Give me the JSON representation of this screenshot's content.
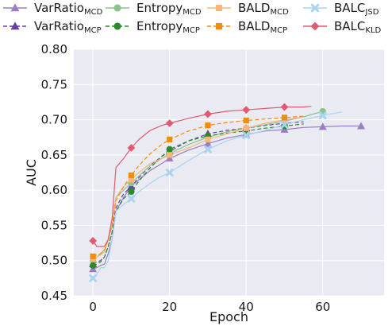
{
  "chart_data": {
    "type": "line",
    "xlabel": "Epoch",
    "ylabel": "AUC",
    "xlim": [
      -5,
      76
    ],
    "ylim": [
      0.45,
      0.8
    ],
    "xticks": [
      0,
      20,
      40,
      60
    ],
    "yticks": [
      0.45,
      0.5,
      0.55,
      0.6,
      0.65,
      0.7,
      0.75,
      0.8
    ],
    "xtick_labels": [
      "0",
      "20",
      "40",
      "60"
    ],
    "ytick_labels": [
      "0.45",
      "0.50",
      "0.55",
      "0.60",
      "0.65",
      "0.70",
      "0.75",
      "0.80"
    ],
    "grid": true,
    "legend_position": "top",
    "series": [
      {
        "name": "VarRatio",
        "sub": "MCD",
        "color": "#9b7fc4",
        "dash": "solid",
        "marker": "triangle",
        "x": [
          0,
          1,
          2,
          3,
          4,
          5,
          6,
          8,
          10,
          12,
          15,
          18,
          20,
          25,
          30,
          35,
          40,
          45,
          50,
          55,
          60,
          65,
          70
        ],
        "y": [
          0.488,
          0.49,
          0.493,
          0.495,
          0.51,
          0.53,
          0.57,
          0.59,
          0.605,
          0.615,
          0.628,
          0.638,
          0.645,
          0.657,
          0.666,
          0.674,
          0.679,
          0.684,
          0.686,
          0.689,
          0.69,
          0.691,
          0.691
        ],
        "mx": [
          0,
          10,
          20,
          30,
          40,
          50,
          60,
          70
        ],
        "my": [
          0.488,
          0.605,
          0.645,
          0.666,
          0.679,
          0.686,
          0.69,
          0.691
        ]
      },
      {
        "name": "VarRatio",
        "sub": "MCP",
        "color": "#6b3fa0",
        "dash": "dashed",
        "marker": "triangle",
        "x": [
          0,
          1,
          2,
          3,
          4,
          5,
          6,
          8,
          10,
          12,
          15,
          18,
          20,
          25,
          30,
          35,
          40,
          45,
          50,
          55
        ],
        "y": [
          0.495,
          0.498,
          0.5,
          0.505,
          0.52,
          0.54,
          0.575,
          0.595,
          0.605,
          0.618,
          0.635,
          0.648,
          0.655,
          0.67,
          0.68,
          0.685,
          0.688,
          0.692,
          0.695,
          0.697
        ],
        "mx": [
          0,
          10,
          20,
          30,
          40,
          50
        ],
        "my": [
          0.495,
          0.605,
          0.655,
          0.68,
          0.688,
          0.695
        ]
      },
      {
        "name": "Entropy",
        "sub": "MCD",
        "color": "#8cc28c",
        "dash": "solid",
        "marker": "circle",
        "x": [
          0,
          1,
          2,
          3,
          4,
          5,
          6,
          8,
          10,
          12,
          15,
          18,
          20,
          25,
          30,
          35,
          40,
          45,
          50,
          55,
          60
        ],
        "y": [
          0.5,
          0.505,
          0.51,
          0.515,
          0.53,
          0.55,
          0.59,
          0.6,
          0.61,
          0.62,
          0.635,
          0.645,
          0.652,
          0.665,
          0.675,
          0.683,
          0.688,
          0.693,
          0.698,
          0.704,
          0.712
        ],
        "mx": [
          0,
          10,
          20,
          30,
          40,
          50,
          60
        ],
        "my": [
          0.5,
          0.61,
          0.652,
          0.675,
          0.688,
          0.698,
          0.712
        ]
      },
      {
        "name": "Entropy",
        "sub": "MCP",
        "color": "#2a8a2a",
        "dash": "dashed",
        "marker": "circle",
        "x": [
          0,
          1,
          2,
          3,
          4,
          5,
          6,
          8,
          10,
          12,
          15,
          18,
          20,
          25,
          30,
          35,
          40,
          45,
          50,
          55
        ],
        "y": [
          0.493,
          0.495,
          0.498,
          0.505,
          0.52,
          0.54,
          0.57,
          0.588,
          0.598,
          0.613,
          0.632,
          0.648,
          0.658,
          0.67,
          0.677,
          0.681,
          0.684,
          0.688,
          0.691,
          0.694
        ],
        "mx": [
          0,
          10,
          20,
          30,
          40,
          50
        ],
        "my": [
          0.493,
          0.598,
          0.658,
          0.677,
          0.684,
          0.691
        ]
      },
      {
        "name": "BALD",
        "sub": "MCD",
        "color": "#f5b87a",
        "dash": "solid",
        "marker": "square",
        "x": [
          0,
          1,
          2,
          3,
          4,
          5,
          6,
          8,
          10,
          12,
          15,
          18,
          20,
          25,
          30,
          35,
          40,
          45,
          50,
          55
        ],
        "y": [
          0.502,
          0.505,
          0.508,
          0.512,
          0.53,
          0.55,
          0.59,
          0.605,
          0.615,
          0.625,
          0.638,
          0.645,
          0.65,
          0.66,
          0.672,
          0.68,
          0.688,
          0.695,
          0.7,
          0.704
        ],
        "mx": [
          0,
          10,
          20,
          30,
          40,
          50
        ],
        "my": [
          0.502,
          0.615,
          0.65,
          0.672,
          0.688,
          0.7
        ]
      },
      {
        "name": "BALD",
        "sub": "MCP",
        "color": "#f28c0f",
        "dash": "dashed",
        "marker": "square",
        "x": [
          0,
          1,
          2,
          3,
          4,
          5,
          6,
          8,
          10,
          12,
          15,
          18,
          20,
          25,
          30,
          35,
          40,
          45,
          50,
          55
        ],
        "y": [
          0.506,
          0.508,
          0.51,
          0.515,
          0.53,
          0.55,
          0.585,
          0.605,
          0.621,
          0.635,
          0.652,
          0.665,
          0.672,
          0.684,
          0.692,
          0.696,
          0.699,
          0.701,
          0.703,
          0.705
        ],
        "mx": [
          0,
          10,
          20,
          30,
          40,
          50
        ],
        "my": [
          0.506,
          0.621,
          0.672,
          0.692,
          0.699,
          0.703
        ]
      },
      {
        "name": "BALC",
        "sub": "JSD",
        "color": "#a8d4f0",
        "dash": "solid",
        "marker": "x",
        "x": [
          0,
          1,
          2,
          3,
          4,
          5,
          6,
          8,
          10,
          12,
          15,
          18,
          20,
          25,
          30,
          35,
          40,
          45,
          50,
          55,
          60,
          65
        ],
        "y": [
          0.475,
          0.48,
          0.49,
          0.49,
          0.5,
          0.53,
          0.57,
          0.58,
          0.588,
          0.598,
          0.61,
          0.62,
          0.625,
          0.642,
          0.658,
          0.67,
          0.678,
          0.685,
          0.693,
          0.7,
          0.706,
          0.711
        ],
        "mx": [
          0,
          10,
          20,
          30,
          40,
          50,
          60
        ],
        "my": [
          0.475,
          0.588,
          0.625,
          0.658,
          0.678,
          0.693,
          0.706
        ]
      },
      {
        "name": "BALC",
        "sub": "KLD",
        "color": "#e05a72",
        "dash": "solid",
        "marker": "diamond",
        "x": [
          0,
          1,
          2,
          3,
          4,
          5,
          6,
          8,
          10,
          12,
          15,
          18,
          20,
          25,
          30,
          35,
          40,
          45,
          50,
          55,
          57
        ],
        "y": [
          0.528,
          0.52,
          0.52,
          0.52,
          0.53,
          0.56,
          0.632,
          0.645,
          0.66,
          0.672,
          0.685,
          0.692,
          0.695,
          0.702,
          0.708,
          0.712,
          0.714,
          0.716,
          0.718,
          0.718,
          0.719
        ],
        "mx": [
          0,
          10,
          20,
          30,
          40,
          50
        ],
        "my": [
          0.528,
          0.66,
          0.695,
          0.708,
          0.714,
          0.718
        ]
      }
    ]
  }
}
